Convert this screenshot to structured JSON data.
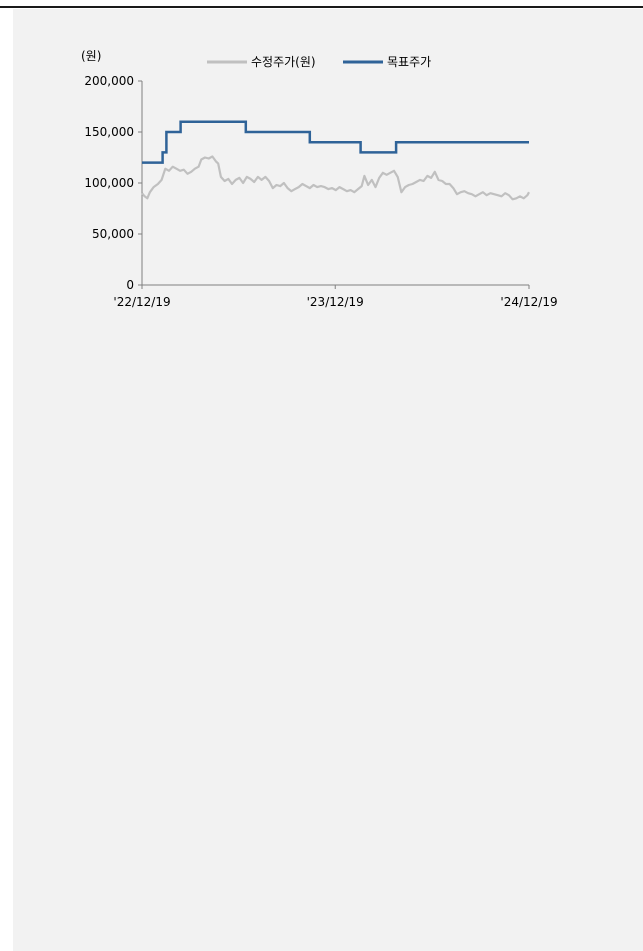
{
  "chart_data": {
    "type": "line",
    "unit_label": "(원)",
    "x_range": [
      "2022-12-19",
      "2024-12-19"
    ],
    "x_tick_labels": [
      "'22/12/19",
      "'23/12/19",
      "'24/12/19"
    ],
    "x_ticks": [
      "2022-12-19",
      "2023-12-19",
      "2024-12-19"
    ],
    "ylim": [
      0,
      200000
    ],
    "y_ticks": [
      0,
      50000,
      100000,
      150000,
      200000
    ],
    "y_tick_labels": [
      "0",
      "50,000",
      "100,000",
      "150,000",
      "200,000"
    ],
    "legend_position": "top",
    "grid": false,
    "series": [
      {
        "name": "수정주가(원)",
        "color": "#c0c0c0",
        "step": false,
        "points": [
          [
            "2022-12-19",
            90000
          ],
          [
            "2022-12-24",
            87000
          ],
          [
            "2022-12-29",
            85000
          ],
          [
            "2023-01-03",
            91000
          ],
          [
            "2023-01-10",
            96000
          ],
          [
            "2023-01-18",
            99000
          ],
          [
            "2023-01-25",
            103000
          ],
          [
            "2023-02-01",
            114000
          ],
          [
            "2023-02-08",
            112000
          ],
          [
            "2023-02-15",
            116000
          ],
          [
            "2023-02-22",
            114000
          ],
          [
            "2023-03-01",
            112000
          ],
          [
            "2023-03-08",
            113000
          ],
          [
            "2023-03-15",
            109000
          ],
          [
            "2023-03-22",
            111000
          ],
          [
            "2023-03-29",
            114000
          ],
          [
            "2023-04-05",
            116000
          ],
          [
            "2023-04-10",
            123000
          ],
          [
            "2023-04-17",
            125000
          ],
          [
            "2023-04-24",
            124000
          ],
          [
            "2023-05-01",
            126000
          ],
          [
            "2023-05-08",
            121000
          ],
          [
            "2023-05-12",
            119000
          ],
          [
            "2023-05-17",
            106000
          ],
          [
            "2023-05-24",
            102000
          ],
          [
            "2023-05-31",
            104000
          ],
          [
            "2023-06-07",
            99000
          ],
          [
            "2023-06-14",
            103000
          ],
          [
            "2023-06-21",
            105000
          ],
          [
            "2023-06-28",
            100000
          ],
          [
            "2023-07-05",
            106000
          ],
          [
            "2023-07-12",
            104000
          ],
          [
            "2023-07-19",
            101000
          ],
          [
            "2023-07-26",
            106000
          ],
          [
            "2023-08-02",
            103000
          ],
          [
            "2023-08-09",
            106000
          ],
          [
            "2023-08-16",
            102000
          ],
          [
            "2023-08-23",
            95000
          ],
          [
            "2023-08-30",
            98000
          ],
          [
            "2023-09-06",
            97000
          ],
          [
            "2023-09-13",
            100000
          ],
          [
            "2023-09-20",
            95000
          ],
          [
            "2023-09-27",
            92000
          ],
          [
            "2023-10-04",
            94000
          ],
          [
            "2023-10-11",
            96000
          ],
          [
            "2023-10-18",
            99000
          ],
          [
            "2023-10-25",
            97000
          ],
          [
            "2023-11-01",
            95000
          ],
          [
            "2023-11-08",
            98000
          ],
          [
            "2023-11-15",
            96000
          ],
          [
            "2023-11-22",
            97000
          ],
          [
            "2023-11-29",
            96000
          ],
          [
            "2023-12-06",
            94000
          ],
          [
            "2023-12-13",
            95000
          ],
          [
            "2023-12-20",
            93000
          ],
          [
            "2023-12-27",
            96000
          ],
          [
            "2024-01-03",
            94000
          ],
          [
            "2024-01-10",
            92000
          ],
          [
            "2024-01-17",
            93000
          ],
          [
            "2024-01-24",
            91000
          ],
          [
            "2024-01-31",
            94000
          ],
          [
            "2024-02-07",
            97000
          ],
          [
            "2024-02-12",
            107000
          ],
          [
            "2024-02-19",
            98000
          ],
          [
            "2024-02-26",
            103000
          ],
          [
            "2024-03-04",
            96000
          ],
          [
            "2024-03-11",
            105000
          ],
          [
            "2024-03-18",
            110000
          ],
          [
            "2024-03-25",
            108000
          ],
          [
            "2024-04-01",
            110000
          ],
          [
            "2024-04-08",
            112000
          ],
          [
            "2024-04-15",
            106000
          ],
          [
            "2024-04-22",
            91000
          ],
          [
            "2024-04-29",
            96000
          ],
          [
            "2024-05-06",
            98000
          ],
          [
            "2024-05-13",
            99000
          ],
          [
            "2024-05-20",
            101000
          ],
          [
            "2024-05-27",
            103000
          ],
          [
            "2024-06-03",
            102000
          ],
          [
            "2024-06-10",
            107000
          ],
          [
            "2024-06-17",
            105000
          ],
          [
            "2024-06-24",
            111000
          ],
          [
            "2024-07-01",
            103000
          ],
          [
            "2024-07-08",
            102000
          ],
          [
            "2024-07-15",
            99000
          ],
          [
            "2024-07-22",
            99000
          ],
          [
            "2024-07-29",
            95000
          ],
          [
            "2024-08-05",
            89000
          ],
          [
            "2024-08-12",
            91000
          ],
          [
            "2024-08-19",
            92000
          ],
          [
            "2024-08-26",
            90000
          ],
          [
            "2024-09-02",
            89000
          ],
          [
            "2024-09-09",
            87000
          ],
          [
            "2024-09-16",
            89000
          ],
          [
            "2024-09-23",
            91000
          ],
          [
            "2024-09-30",
            88000
          ],
          [
            "2024-10-07",
            90000
          ],
          [
            "2024-10-14",
            89000
          ],
          [
            "2024-10-21",
            88000
          ],
          [
            "2024-10-28",
            87000
          ],
          [
            "2024-11-04",
            90000
          ],
          [
            "2024-11-11",
            88000
          ],
          [
            "2024-11-18",
            84000
          ],
          [
            "2024-11-25",
            85000
          ],
          [
            "2024-12-02",
            87000
          ],
          [
            "2024-12-09",
            85000
          ],
          [
            "2024-12-16",
            88000
          ],
          [
            "2024-12-19",
            91000
          ]
        ]
      },
      {
        "name": "목표주가",
        "color": "#2f6398",
        "step": true,
        "points": [
          [
            "2022-12-19",
            120000
          ],
          [
            "2023-01-27",
            130000
          ],
          [
            "2023-02-03",
            150000
          ],
          [
            "2023-03-02",
            160000
          ],
          [
            "2023-07-03",
            150000
          ],
          [
            "2023-11-01",
            140000
          ],
          [
            "2024-02-05",
            130000
          ],
          [
            "2024-04-12",
            140000
          ],
          [
            "2024-12-19",
            140000
          ]
        ]
      }
    ]
  }
}
